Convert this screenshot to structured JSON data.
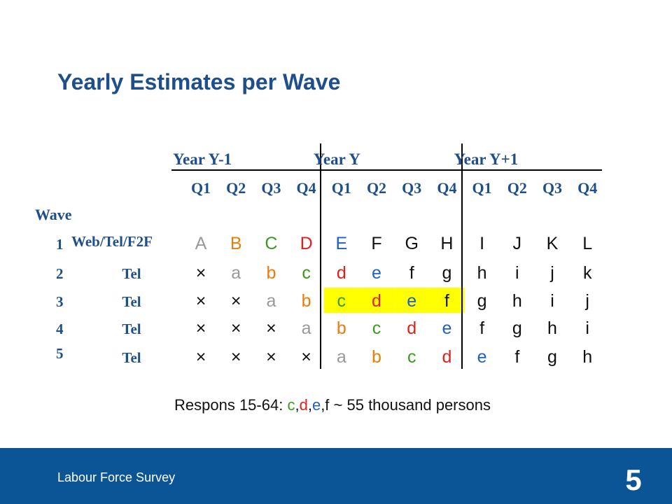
{
  "title": "Yearly Estimates per Wave",
  "wave_heading": "Wave",
  "years": [
    {
      "label": "Year Y-1",
      "quarters": [
        "Q1",
        "Q2",
        "Q3",
        "Q4"
      ]
    },
    {
      "label": "Year Y",
      "quarters": [
        "Q1",
        "Q2",
        "Q3",
        "Q4"
      ]
    },
    {
      "label": "Year Y+1",
      "quarters": [
        "Q1",
        "Q2",
        "Q3",
        "Q4"
      ]
    }
  ],
  "rows": [
    {
      "wave": "1",
      "mode": "Web/Tel/F2F",
      "cells": [
        "A",
        "B",
        "C",
        "D",
        "E",
        "F",
        "G",
        "H",
        "I",
        "J",
        "K",
        "L"
      ]
    },
    {
      "wave": "2",
      "mode": "Tel",
      "cells": [
        "×",
        "a",
        "b",
        "c",
        "d",
        "e",
        "f",
        "g",
        "h",
        "i",
        "j",
        "k"
      ]
    },
    {
      "wave": "3",
      "mode": "Tel",
      "cells": [
        "×",
        "×",
        "a",
        "b",
        "c",
        "d",
        "e",
        "f",
        "g",
        "h",
        "i",
        "j"
      ],
      "highlight_cells": [
        4,
        5,
        6,
        7
      ],
      "highlight_color": "#ffff00"
    },
    {
      "wave": "4",
      "mode": "Tel",
      "cells": [
        "×",
        "×",
        "×",
        "a",
        "b",
        "c",
        "d",
        "e",
        "f",
        "g",
        "h",
        "i"
      ]
    },
    {
      "wave": "5",
      "mode": "Tel",
      "cells": [
        "×",
        "×",
        "×",
        "×",
        "a",
        "b",
        "c",
        "d",
        "e",
        "f",
        "g",
        "h"
      ]
    }
  ],
  "letter_colors": {
    "a": "#999999",
    "b": "#e87d0c",
    "c": "#3a9a1e",
    "d": "#e0201b",
    "e": "#1f5fc8"
  },
  "default_color": "#111111",
  "note": [
    {
      "text": "Respons 15-64: ",
      "color": "#111111"
    },
    {
      "text": "c",
      "color": "#3a9a1e"
    },
    {
      "text": ",",
      "color": "#111111"
    },
    {
      "text": "d",
      "color": "#e0201b"
    },
    {
      "text": ",",
      "color": "#111111"
    },
    {
      "text": "e",
      "color": "#1f5fc8"
    },
    {
      "text": ",f ~ 55 thousand persons",
      "color": "#111111"
    }
  ],
  "footer": {
    "text": "Labour Force Survey",
    "page": "5"
  }
}
